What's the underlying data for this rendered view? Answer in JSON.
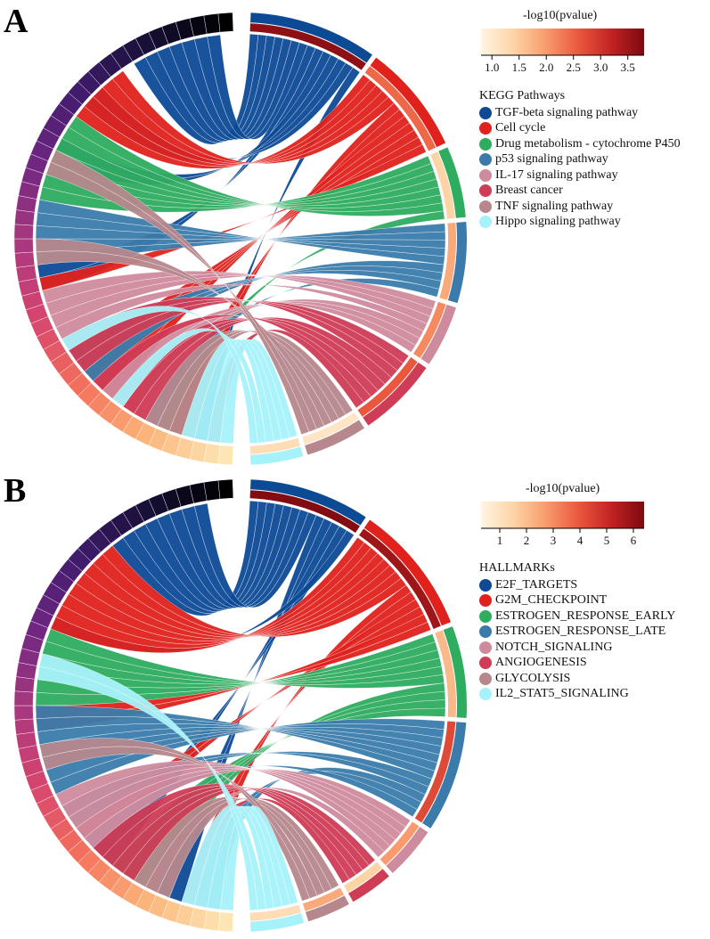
{
  "panels": [
    {
      "letter": "A",
      "scale": {
        "title": "-log10(pvalue)",
        "ticks": [
          "1.0",
          "1.5",
          "2.0",
          "2.5",
          "3.0",
          "3.5"
        ],
        "min": 0.8,
        "max": 3.8
      },
      "legend_title": "KEGG Pathways",
      "categories": [
        {
          "label": "TGF-beta signaling pathway",
          "color": "#0d4a96"
        },
        {
          "label": "Cell cycle",
          "color": "#e0211c"
        },
        {
          "label": "Drug metabolism - cytochrome P450",
          "color": "#2eac5f"
        },
        {
          "label": "p53 signaling pathway",
          "color": "#3a7bab"
        },
        {
          "label": "IL-17 signaling pathway",
          "color": "#cf8b9e"
        },
        {
          "label": "Breast cancer",
          "color": "#cf3c55"
        },
        {
          "label": "TNF signaling pathway",
          "color": "#b6878c"
        },
        {
          "label": "Hippo signaling pathway",
          "color": "#a6f2fa"
        }
      ]
    },
    {
      "letter": "B",
      "scale": {
        "title": "-log10(pvalue)",
        "ticks": [
          "1",
          "2",
          "3",
          "4",
          "5",
          "6"
        ],
        "min": 0.3,
        "max": 6.4
      },
      "legend_title": "HALLMARKs",
      "categories": [
        {
          "label": "E2F_TARGETS",
          "color": "#0d4a96"
        },
        {
          "label": "G2M_CHECKPOINT",
          "color": "#e0211c"
        },
        {
          "label": "ESTROGEN_RESPONSE_EARLY",
          "color": "#2eac5f"
        },
        {
          "label": "ESTROGEN_RESPONSE_LATE",
          "color": "#3a7bab"
        },
        {
          "label": "NOTCH_SIGNALING",
          "color": "#cf8b9e"
        },
        {
          "label": "ANGIOGENESIS",
          "color": "#cf3c55"
        },
        {
          "label": "GLYCOLYSIS",
          "color": "#b6878c"
        },
        {
          "label": "IL2_STAT5_SIGNALING",
          "color": "#a6f2fa"
        }
      ]
    }
  ]
}
